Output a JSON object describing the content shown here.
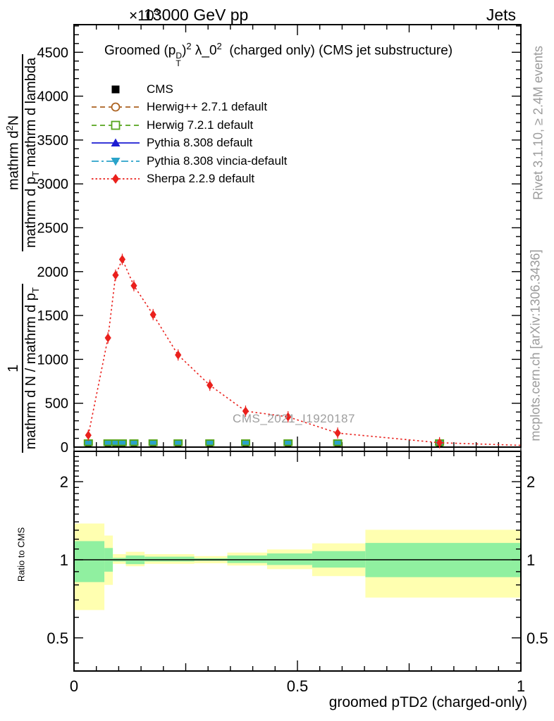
{
  "header": {
    "collision": "13000 GeV pp",
    "tag": "Jets",
    "scale_prefix": "×10",
    "scale_exp": "3"
  },
  "title": {
    "groomed": "Groomed ",
    "p_open": "(p",
    "p_sup": "D",
    "p_sub": "T",
    "p_close": ")",
    "exp1": "2",
    "lambda": " λ_0",
    "exp2": "2",
    "rest": "  (charged only) (CMS jet substructure)"
  },
  "watermark": "CMS_2021_I1920187",
  "side_notes": {
    "rivet": "Rivet 3.1.10, ≥ 2.4M events",
    "mcplots": "mcplots.cern.ch [arXiv:1306.3436]"
  },
  "ylabel": {
    "num1": "1",
    "den1_a": "mathrm d N / mathrm d p",
    "den1_sub": "T",
    "num2_a": "mathrm d",
    "num2_sup": "2",
    "num2_b": "N",
    "den2_a": "mathrm d p",
    "den2_sub": "T",
    "den2_b": " mathrm d lambda"
  },
  "ratio_axis_label": "Ratio to CMS",
  "xlabel": "groomed pTD2 (charged-only)",
  "chart_data": {
    "type": "line",
    "title": "Groomed (p_T^D)^2 λ_0^2 (charged only) (CMS jet substructure)",
    "xlabel": "groomed pTD2 (charged-only)",
    "ylabel": "1/(dN/dp_T) · d²N/(dp_T dλ)",
    "y_scale_note": "×10³",
    "xlim": [
      0,
      1
    ],
    "ylim": [
      0,
      4815
    ],
    "x_major_ticks": [
      0,
      0.5,
      1
    ],
    "x_medium_ticks": [
      0.25,
      0.75
    ],
    "x_minor_step": 0.05,
    "y_major_ticks": [
      0,
      500,
      1000,
      1500,
      2000,
      2500,
      3000,
      3500,
      4000,
      4500
    ],
    "y_minor_step": 100,
    "grid": false,
    "legend_position": "top-left",
    "x": [
      0.032,
      0.076,
      0.093,
      0.108,
      0.134,
      0.177,
      0.233,
      0.304,
      0.384,
      0.479,
      0.59,
      0.818
    ],
    "series": [
      {
        "label": "CMS",
        "color": "#000000",
        "marker": "filled-square",
        "linestyle": "none",
        "values": [
          40,
          40,
          40,
          40,
          40,
          40,
          40,
          40,
          40,
          40,
          40,
          40
        ]
      },
      {
        "label": "Herwig++ 2.7.1 default",
        "color": "#ac6220",
        "marker": "open-circle",
        "linestyle": "dashed",
        "values": [
          40,
          40,
          40,
          40,
          40,
          40,
          40,
          40,
          40,
          40,
          40,
          40
        ]
      },
      {
        "label": "Herwig 7.2.1 default",
        "color": "#55a41d",
        "marker": "open-square",
        "linestyle": "dashed",
        "values": [
          40,
          40,
          40,
          40,
          40,
          40,
          40,
          40,
          40,
          40,
          40,
          40
        ]
      },
      {
        "label": "Pythia 8.308 default",
        "color": "#1c1cd2",
        "marker": "filled-triangle-up",
        "linestyle": "solid",
        "values": [
          40,
          40,
          40,
          40,
          40,
          40,
          40,
          40,
          40,
          40,
          40,
          40
        ]
      },
      {
        "label": "Pythia 8.308 vincia-default",
        "color": "#2aa3c9",
        "marker": "filled-triangle-down",
        "linestyle": "dashdot",
        "values": [
          40,
          40,
          40,
          40,
          40,
          40,
          40,
          40,
          40,
          40,
          40,
          40
        ]
      },
      {
        "label": "Sherpa 2.2.9 default",
        "color": "#ea201c",
        "marker": "filled-diamond",
        "linestyle": "dotted",
        "values": [
          135,
          1245,
          1960,
          2140,
          1840,
          1510,
          1050,
          705,
          410,
          345,
          160,
          50
        ]
      }
    ],
    "ratio_panel": {
      "ylabel": "Ratio to CMS",
      "ylim": [
        0.37,
        2.62
      ],
      "scale": "log",
      "reference_line": 1,
      "y_major_ticks": [
        0.5,
        1,
        2
      ],
      "y_minor_ticks": [
        0.4,
        0.6,
        0.7,
        0.8,
        0.9,
        1.1,
        1.2,
        1.3,
        1.4,
        1.5,
        1.6,
        1.7,
        1.8,
        1.9,
        2.1,
        2.2,
        2.3,
        2.4,
        2.5,
        2.6
      ],
      "band_colors": {
        "yellow": "#ffffb0",
        "green": "#90f0a0"
      },
      "bands": [
        {
          "x0": 0.0,
          "x1": 0.068,
          "yellow": [
            0.64,
            1.38
          ],
          "green": [
            0.82,
            1.18
          ]
        },
        {
          "x0": 0.068,
          "x1": 0.087,
          "yellow": [
            0.8,
            1.24
          ],
          "green": [
            0.9,
            1.11
          ]
        },
        {
          "x0": 0.087,
          "x1": 0.116,
          "yellow": [
            0.964,
            1.051
          ],
          "green": [
            0.985,
            1.017
          ]
        },
        {
          "x0": 0.116,
          "x1": 0.158,
          "yellow": [
            0.944,
            1.073
          ],
          "green": [
            0.962,
            1.039
          ]
        },
        {
          "x0": 0.158,
          "x1": 0.269,
          "yellow": [
            0.964,
            1.051
          ],
          "green": [
            0.985,
            1.028
          ]
        },
        {
          "x0": 0.269,
          "x1": 0.343,
          "yellow": [
            0.969,
            1.033
          ],
          "green": [
            0.99,
            1.013
          ]
        },
        {
          "x0": 0.343,
          "x1": 0.432,
          "yellow": [
            0.95,
            1.066
          ],
          "green": [
            0.972,
            1.039
          ]
        },
        {
          "x0": 0.432,
          "x1": 0.533,
          "yellow": [
            0.92,
            1.096
          ],
          "green": [
            0.955,
            1.058
          ]
        },
        {
          "x0": 0.533,
          "x1": 0.652,
          "yellow": [
            0.865,
            1.157
          ],
          "green": [
            0.933,
            1.08
          ]
        },
        {
          "x0": 0.652,
          "x1": 1.0,
          "yellow": [
            0.715,
            1.305
          ],
          "green": [
            0.857,
            1.161
          ]
        }
      ]
    }
  }
}
